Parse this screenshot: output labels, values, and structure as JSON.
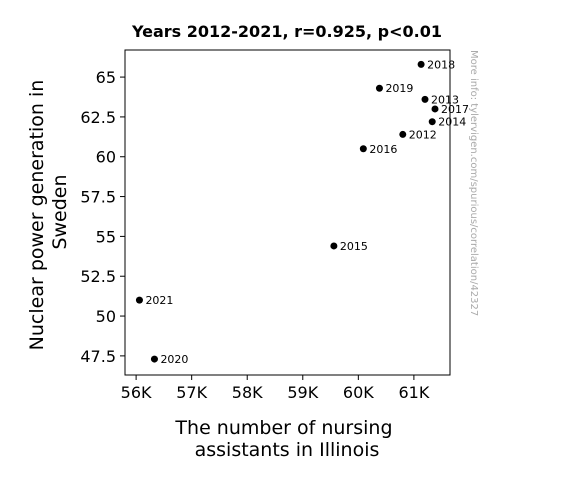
{
  "chart_data": {
    "type": "scatter",
    "title": "Years 2012-2021, r=0.925, p<0.01",
    "xlabel": "The number of nursing assistants in Illinois",
    "ylabel": "Nuclear power generation in Sweden",
    "xlim": [
      55800,
      61650
    ],
    "ylim": [
      46.3,
      66.7
    ],
    "xticks": [
      56000,
      57000,
      58000,
      59000,
      60000,
      61000
    ],
    "xtick_labels": [
      "56K",
      "57K",
      "58K",
      "59K",
      "60K",
      "61K"
    ],
    "yticks": [
      47.5,
      50,
      52.5,
      55,
      57.5,
      60,
      62.5,
      65
    ],
    "ytick_labels": [
      "47.5",
      "50",
      "52.5",
      "55",
      "57.5",
      "60",
      "62.5",
      "65"
    ],
    "grid": false,
    "marker_color": "#000000",
    "points": [
      {
        "label": "2012",
        "x": 60800,
        "y": 61.4
      },
      {
        "label": "2013",
        "x": 61200,
        "y": 63.6
      },
      {
        "label": "2014",
        "x": 61330,
        "y": 62.2
      },
      {
        "label": "2015",
        "x": 59560,
        "y": 54.4
      },
      {
        "label": "2016",
        "x": 60090,
        "y": 60.5
      },
      {
        "label": "2017",
        "x": 61380,
        "y": 63.0
      },
      {
        "label": "2018",
        "x": 61130,
        "y": 65.8
      },
      {
        "label": "2019",
        "x": 60380,
        "y": 64.3
      },
      {
        "label": "2020",
        "x": 56330,
        "y": 47.3
      },
      {
        "label": "2021",
        "x": 56060,
        "y": 51.0
      }
    ]
  },
  "watermark": "More info: tylervigen.com/spurious/correlation/42327"
}
